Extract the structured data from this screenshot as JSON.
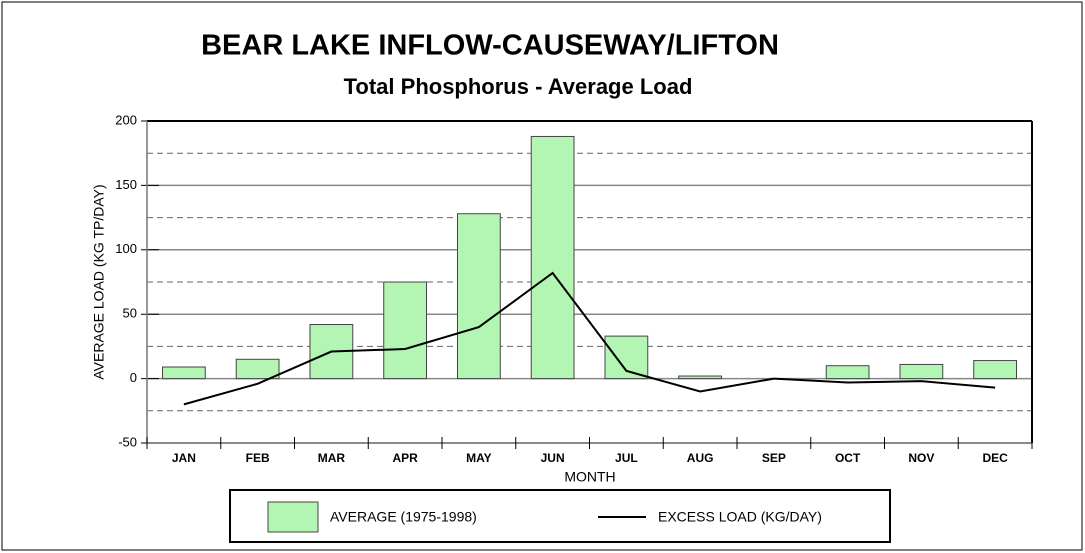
{
  "chart_data": {
    "type": "bar",
    "title": "BEAR LAKE INFLOW-CAUSEWAY/LIFTON",
    "subtitle": "Total Phosphorus - Average Load",
    "x_label": "MONTH",
    "y_label": "AVERAGE LOAD (KG TP/DAY)",
    "categories": [
      "JAN",
      "FEB",
      "MAR",
      "APR",
      "MAY",
      "JUN",
      "JUL",
      "AUG",
      "SEP",
      "OCT",
      "NOV",
      "DEC"
    ],
    "series": [
      {
        "name": "AVERAGE (1975-1998)",
        "type": "bar",
        "color": "#b3f5b3",
        "values": [
          9,
          15,
          42,
          75,
          128,
          188,
          33,
          2,
          0,
          10,
          11,
          14
        ]
      },
      {
        "name": "EXCESS LOAD (KG/DAY)",
        "type": "line",
        "color": "#000000",
        "values": [
          -20,
          -4,
          21,
          23,
          40,
          82,
          6,
          -10,
          0,
          -3,
          -2,
          -7
        ]
      }
    ],
    "ylim": [
      -50,
      200
    ],
    "yticks": [
      -50,
      0,
      50,
      100,
      150,
      200
    ],
    "minor_yticks": [
      -25,
      25,
      75,
      125,
      175
    ],
    "grid": true
  }
}
